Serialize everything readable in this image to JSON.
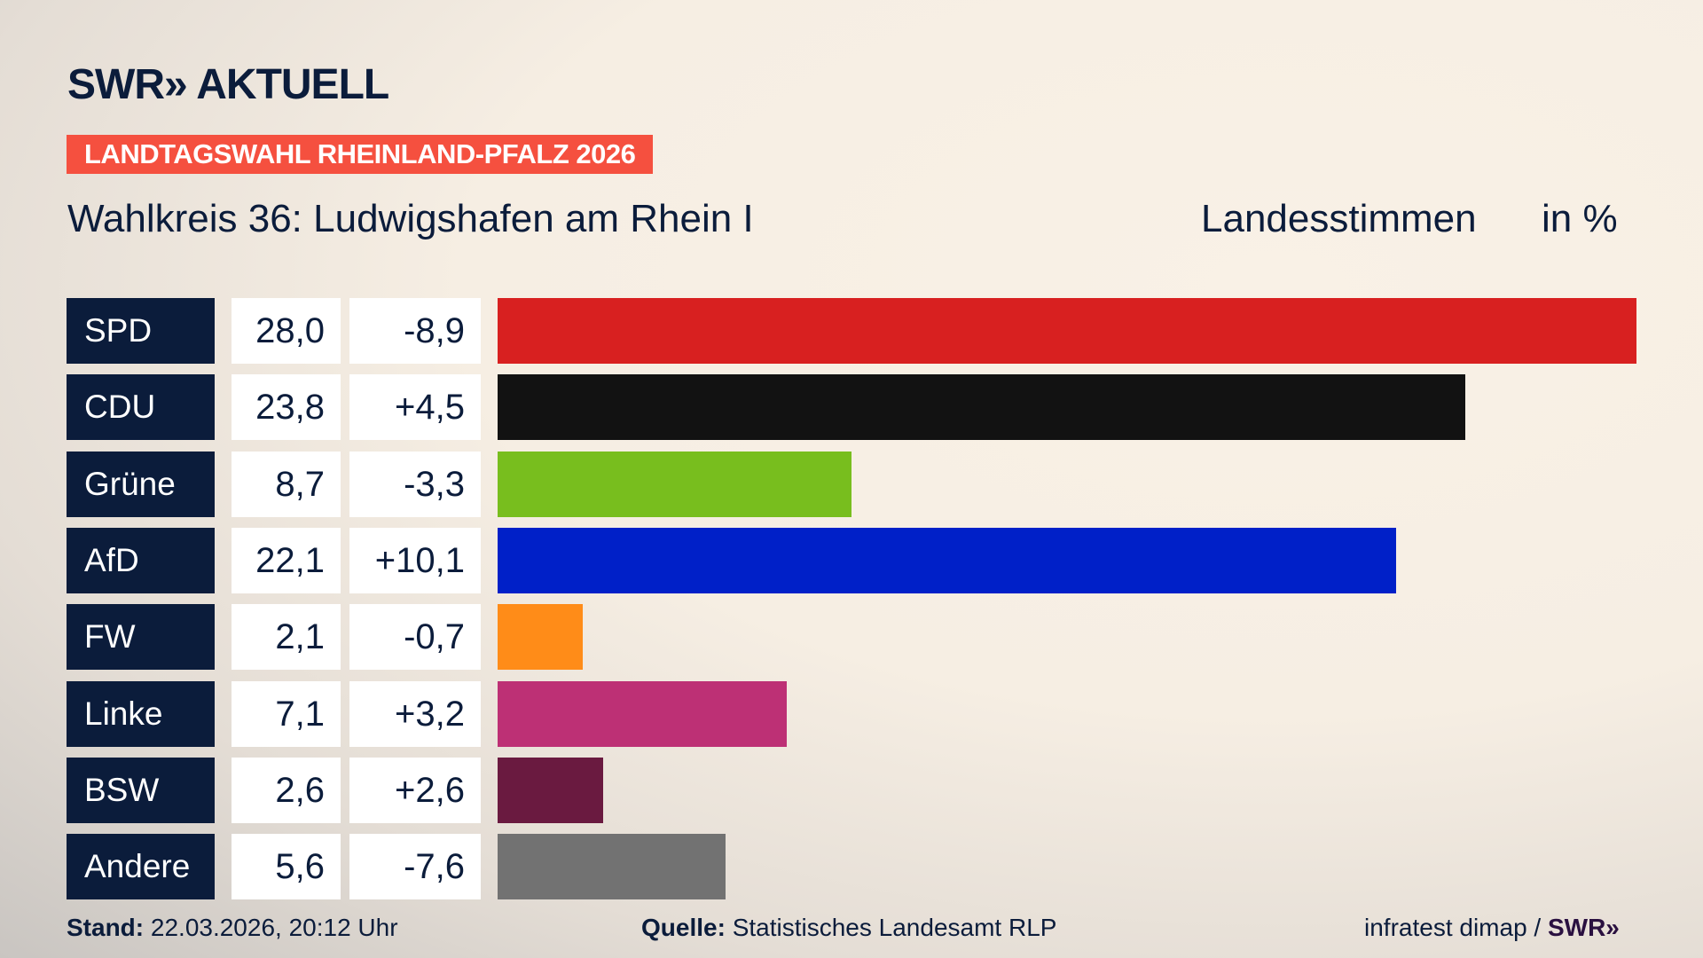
{
  "header": {
    "logo": "SWR» AKTUELL",
    "banner": "LANDTAGSWAHL RHEINLAND-PFALZ 2026",
    "title": "Wahlkreis 36: Ludwigshafen am Rhein I",
    "measure": "Landesstimmen",
    "unit": "in %"
  },
  "chart_data": {
    "type": "bar",
    "orientation": "horizontal",
    "categories": [
      "SPD",
      "CDU",
      "Grüne",
      "AfD",
      "FW",
      "Linke",
      "BSW",
      "Andere"
    ],
    "values": [
      28.0,
      23.8,
      8.7,
      22.1,
      2.1,
      7.1,
      2.6,
      5.6
    ],
    "values_label": [
      "28,0",
      "23,8",
      "8,7",
      "22,1",
      "2,1",
      "7,1",
      "2,6",
      "5,6"
    ],
    "change_label": [
      "-8,9",
      "+4,5",
      "-3,3",
      "+10,1",
      "-0,7",
      "+3,2",
      "+2,6",
      "-7,6"
    ],
    "colors": [
      "#d82020",
      "#121212",
      "#78be1e",
      "#0020c8",
      "#ff8c18",
      "#bd3075",
      "#6a1a40",
      "#727272"
    ],
    "xlim": [
      0,
      28.0
    ]
  },
  "footer": {
    "stand_label": "Stand:",
    "stand_value": "22.03.2026, 20:12 Uhr",
    "source_label": "Quelle:",
    "source_value": "Statistisches Landesamt RLP",
    "credit": "infratest dimap / ",
    "credit_logo": "SWR»"
  }
}
